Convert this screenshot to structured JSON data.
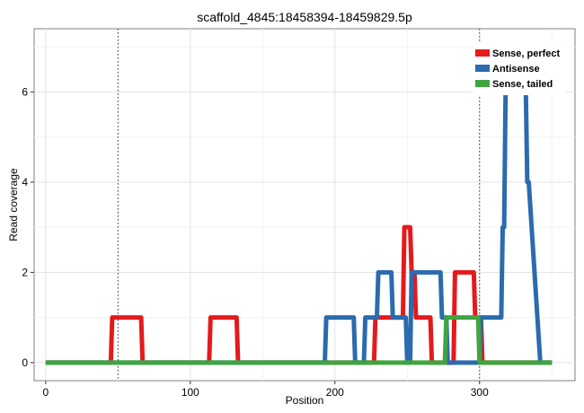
{
  "chart_data": {
    "type": "line",
    "title": "scaffold_4845:18458394-18459829.5p",
    "xlabel": "Position",
    "ylabel": "Read coverage",
    "xlim": [
      -8,
      366
    ],
    "ylim": [
      -0.4,
      7.4
    ],
    "x_ticks": [
      0,
      100,
      200,
      300
    ],
    "y_ticks": [
      0,
      2,
      4,
      6
    ],
    "x_minor_ticks": [
      50,
      150,
      250,
      350
    ],
    "y_minor_ticks": [
      1,
      3,
      5,
      7
    ],
    "vlines": [
      50,
      300
    ],
    "grid": true,
    "legend_position": "top-right",
    "series": [
      {
        "name": "Sense, perfect",
        "color": "#E41A1C",
        "points": [
          [
            0,
            0
          ],
          [
            45,
            0
          ],
          [
            46,
            1
          ],
          [
            66,
            1
          ],
          [
            67,
            0
          ],
          [
            113,
            0
          ],
          [
            114,
            1
          ],
          [
            132,
            1
          ],
          [
            133,
            0
          ],
          [
            227,
            0
          ],
          [
            228,
            1
          ],
          [
            247,
            1
          ],
          [
            248,
            3
          ],
          [
            252,
            3
          ],
          [
            253,
            2
          ],
          [
            255,
            2
          ],
          [
            256,
            1
          ],
          [
            266,
            1
          ],
          [
            267,
            0
          ],
          [
            282,
            0
          ],
          [
            283,
            2
          ],
          [
            296,
            2
          ],
          [
            297,
            1
          ],
          [
            301,
            1
          ],
          [
            302,
            0
          ],
          [
            350,
            0
          ]
        ]
      },
      {
        "name": "Antisense",
        "color": "#2B6BAE",
        "points": [
          [
            0,
            0
          ],
          [
            193,
            0
          ],
          [
            194,
            1
          ],
          [
            213,
            1
          ],
          [
            214,
            0
          ],
          [
            220,
            0
          ],
          [
            221,
            1
          ],
          [
            229,
            1
          ],
          [
            230,
            2
          ],
          [
            239,
            2
          ],
          [
            240,
            1
          ],
          [
            249,
            1
          ],
          [
            250,
            0
          ],
          [
            252,
            0
          ],
          [
            253,
            2
          ],
          [
            273,
            2
          ],
          [
            274,
            1
          ],
          [
            277,
            1
          ],
          [
            278,
            0
          ],
          [
            300,
            0
          ],
          [
            301,
            1
          ],
          [
            315,
            1
          ],
          [
            316,
            3
          ],
          [
            317,
            3
          ],
          [
            318,
            6
          ],
          [
            332,
            6
          ],
          [
            333,
            4
          ],
          [
            334,
            4
          ],
          [
            342,
            0
          ],
          [
            350,
            0
          ]
        ]
      },
      {
        "name": "Sense, tailed",
        "color": "#3FA53F",
        "points": [
          [
            0,
            0
          ],
          [
            276,
            0
          ],
          [
            277,
            1
          ],
          [
            299,
            1
          ],
          [
            300,
            0
          ],
          [
            350,
            0
          ]
        ]
      }
    ]
  }
}
